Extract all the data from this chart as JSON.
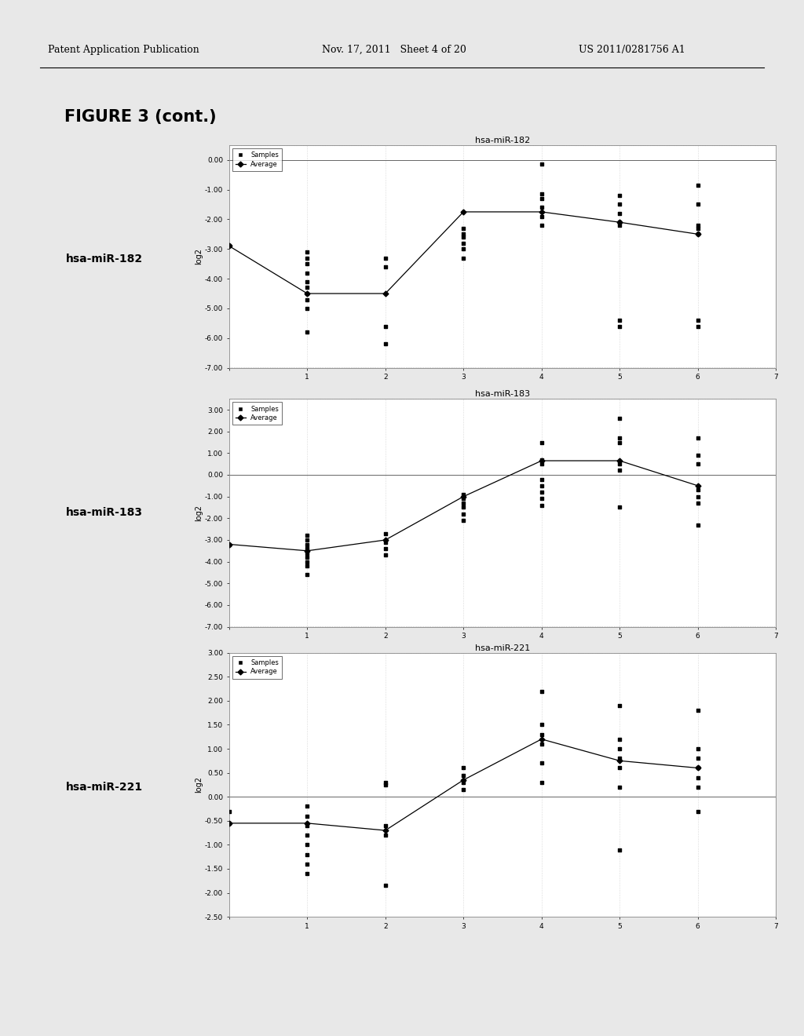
{
  "bg_color": "#e8e8e8",
  "panel_bg": "#ffffff",
  "header_left": "Patent Application Publication",
  "header_mid": "Nov. 17, 2011   Sheet 4 of 20",
  "header_right": "US 2011/0281756 A1",
  "figure_title": "FIGURE 3 (cont.)",
  "charts": [
    {
      "title": "hsa-miR-182",
      "side_label": "hsa-miR-182",
      "ylabel": "log2",
      "xlim": [
        0,
        7
      ],
      "ylim": [
        -7.0,
        0.5
      ],
      "yticks": [
        0.0,
        -1.0,
        -2.0,
        -3.0,
        -4.0,
        -5.0,
        -6.0,
        -7.0
      ],
      "xticks": [
        0,
        1,
        2,
        3,
        4,
        5,
        6,
        7
      ],
      "avg_x": [
        0,
        1,
        2,
        3,
        4,
        5,
        6
      ],
      "avg_y": [
        -2.9,
        -4.5,
        -4.5,
        -1.75,
        -1.75,
        -2.1,
        -2.5
      ],
      "scatter_data": [
        [
          0,
          -2.9
        ],
        [
          1,
          -3.1
        ],
        [
          1,
          -3.3
        ],
        [
          1,
          -3.5
        ],
        [
          1,
          -3.8
        ],
        [
          1,
          -4.1
        ],
        [
          1,
          -4.3
        ],
        [
          1,
          -4.5
        ],
        [
          1,
          -4.7
        ],
        [
          1,
          -5.0
        ],
        [
          1,
          -5.8
        ],
        [
          2,
          -3.3
        ],
        [
          2,
          -3.6
        ],
        [
          2,
          -5.6
        ],
        [
          2,
          -6.2
        ],
        [
          3,
          -2.3
        ],
        [
          3,
          -2.5
        ],
        [
          3,
          -2.6
        ],
        [
          3,
          -2.8
        ],
        [
          3,
          -3.0
        ],
        [
          3,
          -3.3
        ],
        [
          4,
          -1.15
        ],
        [
          4,
          -1.3
        ],
        [
          4,
          -1.6
        ],
        [
          4,
          -1.9
        ],
        [
          4,
          -2.2
        ],
        [
          4,
          -0.15
        ],
        [
          5,
          -1.2
        ],
        [
          5,
          -1.5
        ],
        [
          5,
          -1.8
        ],
        [
          5,
          -2.1
        ],
        [
          5,
          -2.2
        ],
        [
          5,
          -5.4
        ],
        [
          5,
          -5.6
        ],
        [
          6,
          -0.85
        ],
        [
          6,
          -1.5
        ],
        [
          6,
          -2.2
        ],
        [
          6,
          -2.3
        ],
        [
          6,
          -2.5
        ],
        [
          6,
          -5.4
        ],
        [
          6,
          -5.6
        ]
      ]
    },
    {
      "title": "hsa-miR-183",
      "side_label": "hsa-miR-183",
      "ylabel": "log2",
      "xlim": [
        0,
        7
      ],
      "ylim": [
        -7.0,
        3.5
      ],
      "yticks": [
        3.0,
        2.0,
        1.0,
        0.0,
        -1.0,
        -2.0,
        -3.0,
        -4.0,
        -5.0,
        -6.0,
        -7.0
      ],
      "xticks": [
        0,
        1,
        2,
        3,
        4,
        5,
        6,
        7
      ],
      "avg_x": [
        0,
        1,
        2,
        3,
        4,
        5,
        6
      ],
      "avg_y": [
        -3.2,
        -3.5,
        -3.0,
        -1.0,
        0.65,
        0.65,
        -0.5
      ],
      "scatter_data": [
        [
          0,
          -3.2
        ],
        [
          1,
          -2.8
        ],
        [
          1,
          -3.0
        ],
        [
          1,
          -3.2
        ],
        [
          1,
          -3.4
        ],
        [
          1,
          -3.6
        ],
        [
          1,
          -3.8
        ],
        [
          1,
          -4.0
        ],
        [
          1,
          -4.2
        ],
        [
          1,
          -4.6
        ],
        [
          2,
          -2.7
        ],
        [
          2,
          -3.1
        ],
        [
          2,
          -3.4
        ],
        [
          2,
          -3.7
        ],
        [
          3,
          -0.9
        ],
        [
          3,
          -1.1
        ],
        [
          3,
          -1.3
        ],
        [
          3,
          -1.5
        ],
        [
          3,
          -1.8
        ],
        [
          3,
          -2.1
        ],
        [
          4,
          -0.2
        ],
        [
          4,
          -0.5
        ],
        [
          4,
          -0.8
        ],
        [
          4,
          -1.1
        ],
        [
          4,
          -1.4
        ],
        [
          4,
          0.5
        ],
        [
          4,
          0.7
        ],
        [
          4,
          1.5
        ],
        [
          5,
          0.2
        ],
        [
          5,
          0.5
        ],
        [
          5,
          1.5
        ],
        [
          5,
          1.7
        ],
        [
          5,
          -1.5
        ],
        [
          5,
          2.6
        ],
        [
          6,
          -0.7
        ],
        [
          6,
          -1.0
        ],
        [
          6,
          -1.3
        ],
        [
          6,
          -2.3
        ],
        [
          6,
          1.7
        ],
        [
          6,
          0.9
        ],
        [
          6,
          0.5
        ]
      ]
    },
    {
      "title": "hsa-miR-221",
      "side_label": "hsa-miR-221",
      "ylabel": "log2",
      "xlim": [
        0,
        7
      ],
      "ylim": [
        -2.5,
        3.0
      ],
      "yticks": [
        3.0,
        2.5,
        2.0,
        1.5,
        1.0,
        0.5,
        0.0,
        -0.5,
        -1.0,
        -1.5,
        -2.0,
        -2.5
      ],
      "xticks": [
        0,
        1,
        2,
        3,
        4,
        5,
        6,
        7
      ],
      "avg_x": [
        0,
        1,
        2,
        3,
        4,
        5,
        6
      ],
      "avg_y": [
        -0.55,
        -0.55,
        -0.7,
        0.35,
        1.2,
        0.75,
        0.6
      ],
      "scatter_data": [
        [
          0,
          -0.3
        ],
        [
          0,
          -0.55
        ],
        [
          1,
          -0.2
        ],
        [
          1,
          -0.4
        ],
        [
          1,
          -0.6
        ],
        [
          1,
          -0.8
        ],
        [
          1,
          -1.0
        ],
        [
          1,
          -1.2
        ],
        [
          1,
          -1.4
        ],
        [
          1,
          -1.6
        ],
        [
          2,
          -0.6
        ],
        [
          2,
          -0.8
        ],
        [
          2,
          0.25
        ],
        [
          2,
          0.3
        ],
        [
          2,
          -1.85
        ],
        [
          3,
          0.15
        ],
        [
          3,
          0.3
        ],
        [
          3,
          0.45
        ],
        [
          3,
          0.6
        ],
        [
          4,
          0.3
        ],
        [
          4,
          0.7
        ],
        [
          4,
          1.1
        ],
        [
          4,
          1.3
        ],
        [
          4,
          1.5
        ],
        [
          4,
          2.2
        ],
        [
          5,
          0.2
        ],
        [
          5,
          0.6
        ],
        [
          5,
          0.8
        ],
        [
          5,
          1.0
        ],
        [
          5,
          1.2
        ],
        [
          5,
          1.9
        ],
        [
          5,
          -1.1
        ],
        [
          6,
          0.2
        ],
        [
          6,
          0.4
        ],
        [
          6,
          0.6
        ],
        [
          6,
          0.8
        ],
        [
          6,
          1.0
        ],
        [
          6,
          1.8
        ],
        [
          6,
          -0.3
        ]
      ]
    }
  ]
}
